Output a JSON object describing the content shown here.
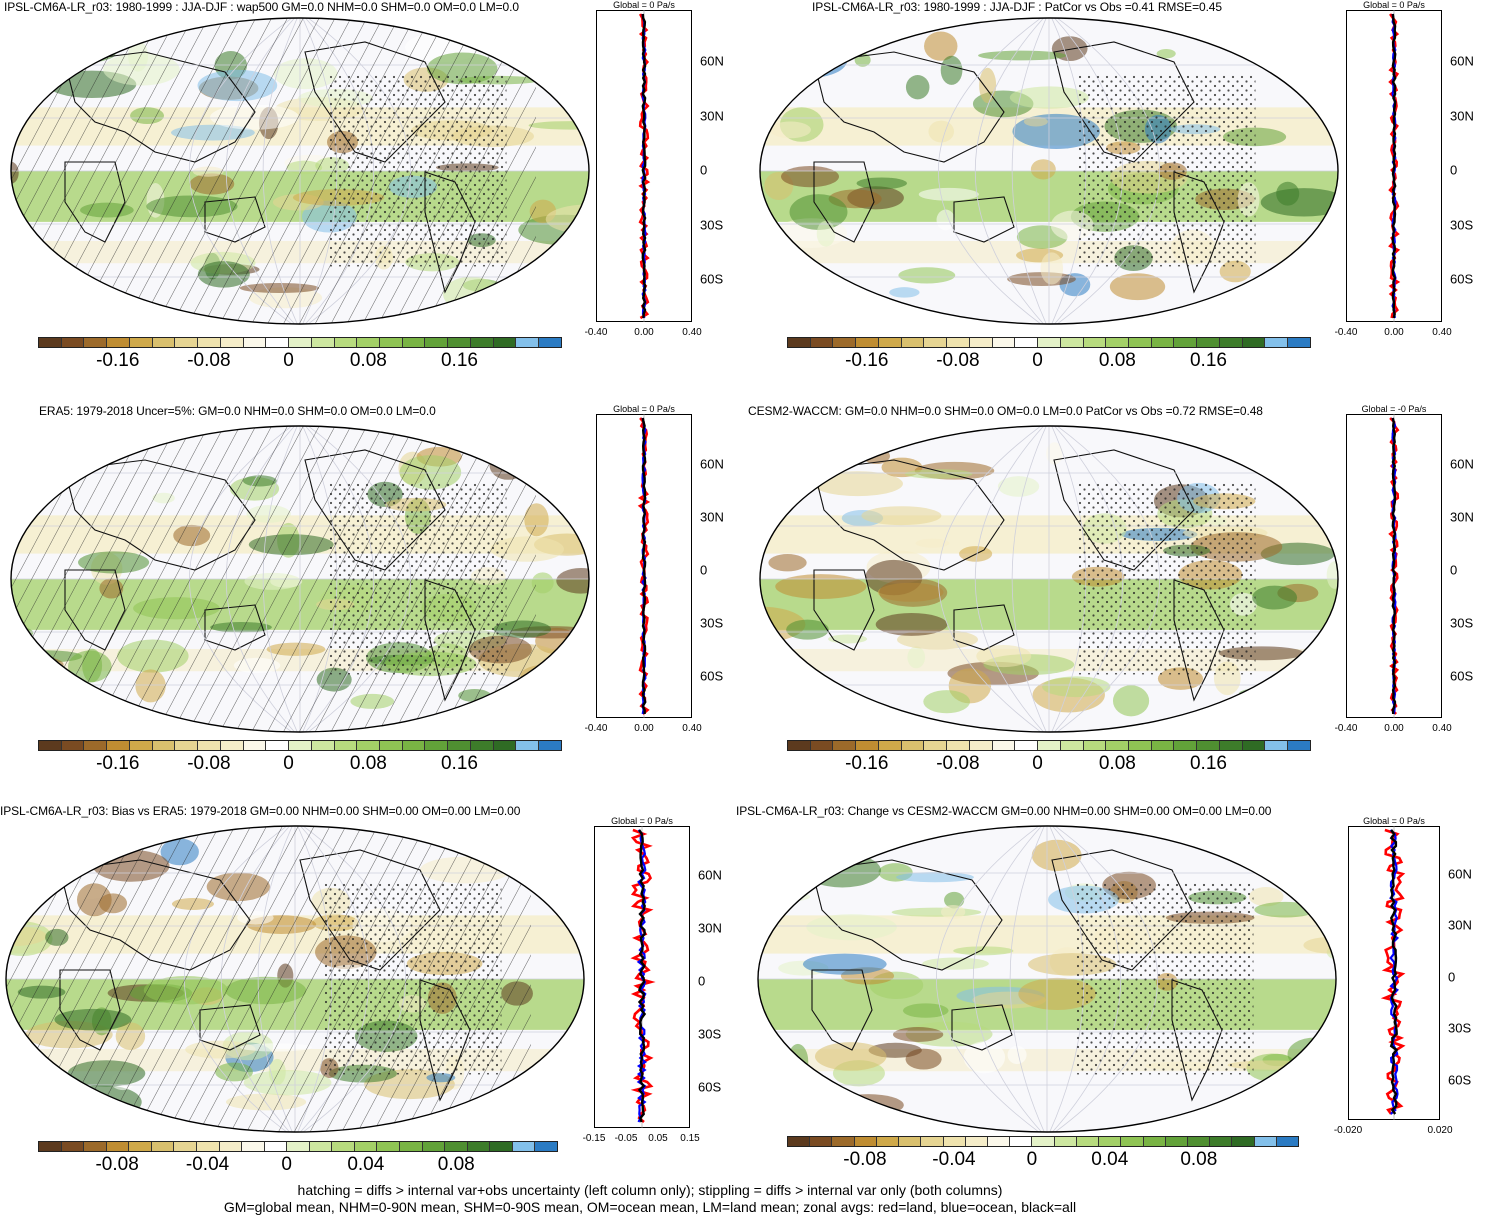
{
  "colors": {
    "colorbar": [
      "#5c3a1e",
      "#7a4b22",
      "#9c6a2a",
      "#bf8d32",
      "#cfa94a",
      "#d9c06e",
      "#e6d593",
      "#efe3ae",
      "#f5edc9",
      "#fbf8ea",
      "#ffffff",
      "#e4f2c8",
      "#cde7a0",
      "#b7db7e",
      "#a3d067",
      "#8fc454",
      "#79b444",
      "#62a239",
      "#4f8f31",
      "#3d7c2a",
      "#2f6b24",
      "#83c0ea",
      "#2b7bc3"
    ],
    "land_line": "red",
    "ocean_line": "blue",
    "all_line": "black"
  },
  "panels": [
    {
      "id": "p1",
      "title": "IPSL-CM6A-LR_r03: 1980-1999 : JJA-DJF : wap500 GM=0.0 NHM=0.0 SHM=0.0 OM=0.0 LM=0.0",
      "cb_ticks": [
        "-0.16",
        "-0.08",
        "0",
        "0.08",
        "0.16"
      ],
      "zonal_title": "Global = 0 Pa/s",
      "zonal_xticks": [
        "-0.40",
        "0.00",
        "0.40"
      ],
      "lat_labels": [
        "60N",
        "30N",
        "0",
        "30S",
        "60S"
      ]
    },
    {
      "id": "p2",
      "title": "IPSL-CM6A-LR_r03: 1980-1999 : JJA-DJF : PatCor vs Obs =0.41 RMSE=0.45",
      "cb_ticks": [
        "-0.16",
        "-0.08",
        "0",
        "0.08",
        "0.16"
      ],
      "zonal_title": "Global = 0 Pa/s",
      "zonal_xticks": [
        "-0.40",
        "0.00",
        "0.40"
      ],
      "lat_labels": [
        "60N",
        "30N",
        "0",
        "30S",
        "60S"
      ]
    },
    {
      "id": "p3",
      "title": "ERA5: 1979-2018 Uncer=5%: GM=0.0 NHM=0.0 SHM=0.0 OM=0.0 LM=0.0",
      "cb_ticks": [
        "-0.16",
        "-0.08",
        "0",
        "0.08",
        "0.16"
      ],
      "zonal_title": "Global = 0 Pa/s",
      "zonal_xticks": [
        "-0.40",
        "0.00",
        "0.40"
      ],
      "lat_labels": [
        "60N",
        "30N",
        "0",
        "30S",
        "60S"
      ]
    },
    {
      "id": "p4",
      "title": "CESM2-WACCM: GM=0.0 NHM=0.0 SHM=0.0 OM=0.0 LM=0.0 PatCor vs Obs =0.72 RMSE=0.48",
      "cb_ticks": [
        "-0.16",
        "-0.08",
        "0",
        "0.08",
        "0.16"
      ],
      "zonal_title": "Global = -0 Pa/s",
      "zonal_xticks": [
        "-0.40",
        "0.00",
        "0.40"
      ],
      "lat_labels": [
        "60N",
        "30N",
        "0",
        "30S",
        "60S"
      ]
    },
    {
      "id": "p5",
      "title": "IPSL-CM6A-LR_r03: Bias vs ERA5: 1979-2018 GM=0.00 NHM=0.00 SHM=0.00 OM=0.00 LM=0.00",
      "cb_ticks": [
        "-0.08",
        "-0.04",
        "0",
        "0.04",
        "0.08"
      ],
      "zonal_title": "Global = 0 Pa/s",
      "zonal_xticks": [
        "-0.15",
        "-0.05",
        "0.05",
        "0.15"
      ],
      "lat_labels": [
        "60N",
        "30N",
        "0",
        "30S",
        "60S"
      ]
    },
    {
      "id": "p6",
      "title": "IPSL-CM6A-LR_r03: Change vs CESM2-WACCM GM=0.00 NHM=0.00 SHM=0.00 OM=0.00 LM=0.00",
      "cb_ticks": [
        "-0.08",
        "-0.04",
        "0",
        "0.04",
        "0.08"
      ],
      "zonal_title": "Global = 0 Pa/s",
      "zonal_xticks": [
        "-0.020",
        "0.020"
      ],
      "lat_labels": [
        "60N",
        "30N",
        "0",
        "30S",
        "60S"
      ]
    }
  ],
  "footer": {
    "line1": "hatching = diffs > internal var+obs uncertainty (left column only); stippling = diffs > internal var only (both columns)",
    "line2": "GM=global mean, NHM=0-90N mean, SHM=0-90S mean, OM=ocean mean, LM=land mean; zonal avgs: red=land, blue=ocean, black=all"
  },
  "chart_data": [
    {
      "type": "heatmap",
      "title": "IPSL-CM6A-LR_r03: 1980-1999 : JJA-DJF : wap500 GM=0.0 NHM=0.0 SHM=0.0 OM=0.0 LM=0.0",
      "colorbar_ticks": [
        -0.16,
        -0.08,
        0,
        0.08,
        0.16
      ],
      "zonal_mean_xlim": [
        -0.4,
        0.4
      ],
      "zonal_mean_title": "Global = 0 Pa/s",
      "lat_ticks": [
        60,
        30,
        0,
        -30,
        -60
      ]
    },
    {
      "type": "heatmap",
      "title": "IPSL-CM6A-LR_r03: 1980-1999 : JJA-DJF : PatCor vs Obs =0.41 RMSE=0.45",
      "colorbar_ticks": [
        -0.16,
        -0.08,
        0,
        0.08,
        0.16
      ],
      "zonal_mean_xlim": [
        -0.4,
        0.4
      ],
      "zonal_mean_title": "Global = 0 Pa/s",
      "lat_ticks": [
        60,
        30,
        0,
        -30,
        -60
      ]
    },
    {
      "type": "heatmap",
      "title": "ERA5: 1979-2018 Uncer=5%: GM=0.0 NHM=0.0 SHM=0.0 OM=0.0 LM=0.0",
      "colorbar_ticks": [
        -0.16,
        -0.08,
        0,
        0.08,
        0.16
      ],
      "zonal_mean_xlim": [
        -0.4,
        0.4
      ],
      "zonal_mean_title": "Global = 0 Pa/s",
      "lat_ticks": [
        60,
        30,
        0,
        -30,
        -60
      ]
    },
    {
      "type": "heatmap",
      "title": "CESM2-WACCM: GM=0.0 NHM=0.0 SHM=0.0 OM=0.0 LM=0.0 PatCor vs Obs =0.72 RMSE=0.48",
      "colorbar_ticks": [
        -0.16,
        -0.08,
        0,
        0.08,
        0.16
      ],
      "zonal_mean_xlim": [
        -0.4,
        0.4
      ],
      "zonal_mean_title": "Global = -0 Pa/s",
      "lat_ticks": [
        60,
        30,
        0,
        -30,
        -60
      ]
    },
    {
      "type": "heatmap",
      "title": "IPSL-CM6A-LR_r03: Bias vs ERA5: 1979-2018 GM=0.00 NHM=0.00 SHM=0.00 OM=0.00 LM=0.00",
      "colorbar_ticks": [
        -0.08,
        -0.04,
        0,
        0.04,
        0.08
      ],
      "zonal_mean_xlim": [
        -0.15,
        0.15
      ],
      "zonal_mean_title": "Global = 0 Pa/s",
      "lat_ticks": [
        60,
        30,
        0,
        -30,
        -60
      ]
    },
    {
      "type": "heatmap",
      "title": "IPSL-CM6A-LR_r03: Change vs CESM2-WACCM GM=0.00 NHM=0.00 SHM=0.00 OM=0.00 LM=0.00",
      "colorbar_ticks": [
        -0.08,
        -0.04,
        0,
        0.04,
        0.08
      ],
      "zonal_mean_xlim": [
        -0.02,
        0.02
      ],
      "zonal_mean_title": "Global = 0 Pa/s",
      "lat_ticks": [
        60,
        30,
        0,
        -30,
        -60
      ]
    }
  ]
}
